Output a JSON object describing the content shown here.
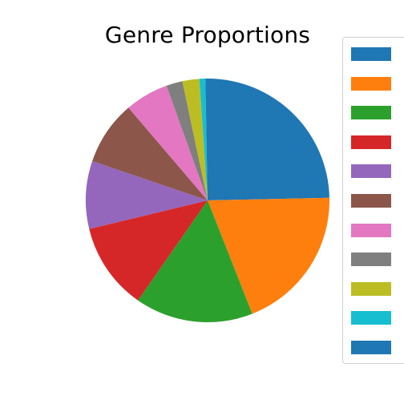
{
  "chart_data": {
    "type": "pie",
    "title": "Genre Proportions",
    "slices": [
      {
        "label": "",
        "value": 25.2,
        "color": "#1f77b4"
      },
      {
        "label": "",
        "value": 19.8,
        "color": "#ff7f0e"
      },
      {
        "label": "",
        "value": 16.0,
        "color": "#2ca02c"
      },
      {
        "label": "",
        "value": 11.8,
        "color": "#d62728"
      },
      {
        "label": "",
        "value": 9.2,
        "color": "#9467bd"
      },
      {
        "label": "",
        "value": 8.7,
        "color": "#8c564b"
      },
      {
        "label": "",
        "value": 5.9,
        "color": "#e377c2"
      },
      {
        "label": "",
        "value": 2.2,
        "color": "#7f7f7f"
      },
      {
        "label": "",
        "value": 2.3,
        "color": "#bcbd22"
      },
      {
        "label": "",
        "value": 0.8,
        "color": "#17becf"
      },
      {
        "label": "",
        "value": 0.3,
        "color": "#1f77b4"
      }
    ],
    "start_angle_deg": 90,
    "direction": "counterclockwise",
    "legend_position": "right"
  }
}
